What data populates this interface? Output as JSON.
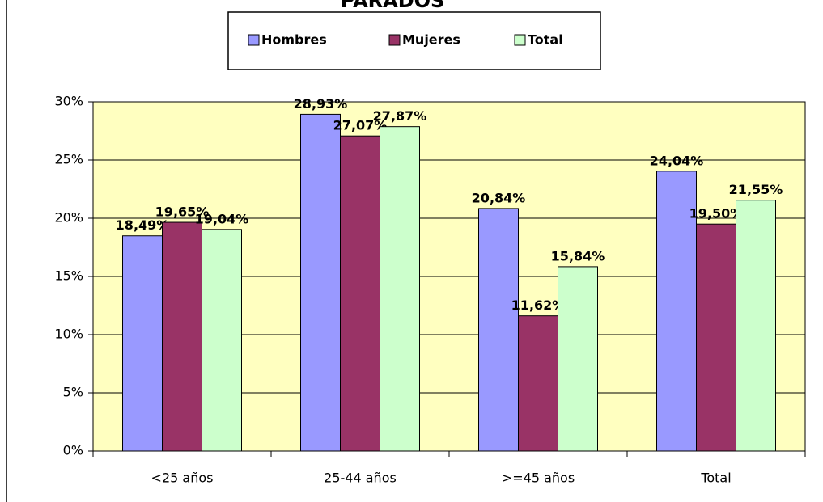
{
  "chart_data": {
    "type": "bar",
    "title": "PARADOS",
    "categories": [
      "<25 años",
      "25-44 años",
      ">=45 años",
      "Total"
    ],
    "series": [
      {
        "name": "Hombres",
        "color": "#9999ff",
        "values": [
          18.49,
          28.93,
          20.84,
          24.04
        ],
        "value_labels": [
          "18,49%",
          "28,93%",
          "20,84%",
          "24,04%"
        ]
      },
      {
        "name": "Mujeres",
        "color": "#993366",
        "values": [
          19.65,
          27.07,
          11.62,
          19.5
        ],
        "value_labels": [
          "19,65%",
          "27,07%",
          "11,62%",
          "19,50%"
        ]
      },
      {
        "name": "Total",
        "color": "#ccffcc",
        "values": [
          19.04,
          27.87,
          15.84,
          21.55
        ],
        "value_labels": [
          "19,04%",
          "27,87%",
          "15,84%",
          "21,55%"
        ]
      }
    ],
    "ylim": [
      0,
      30
    ],
    "yticks": [
      {
        "value": 0,
        "label": "0%"
      },
      {
        "value": 5,
        "label": "5%"
      },
      {
        "value": 10,
        "label": "10%"
      },
      {
        "value": 15,
        "label": "15%"
      },
      {
        "value": 20,
        "label": "20%"
      },
      {
        "value": 25,
        "label": "25%"
      },
      {
        "value": 30,
        "label": "30%"
      }
    ],
    "grid": true,
    "legend": "top",
    "plot_background": "#ffffc0"
  }
}
